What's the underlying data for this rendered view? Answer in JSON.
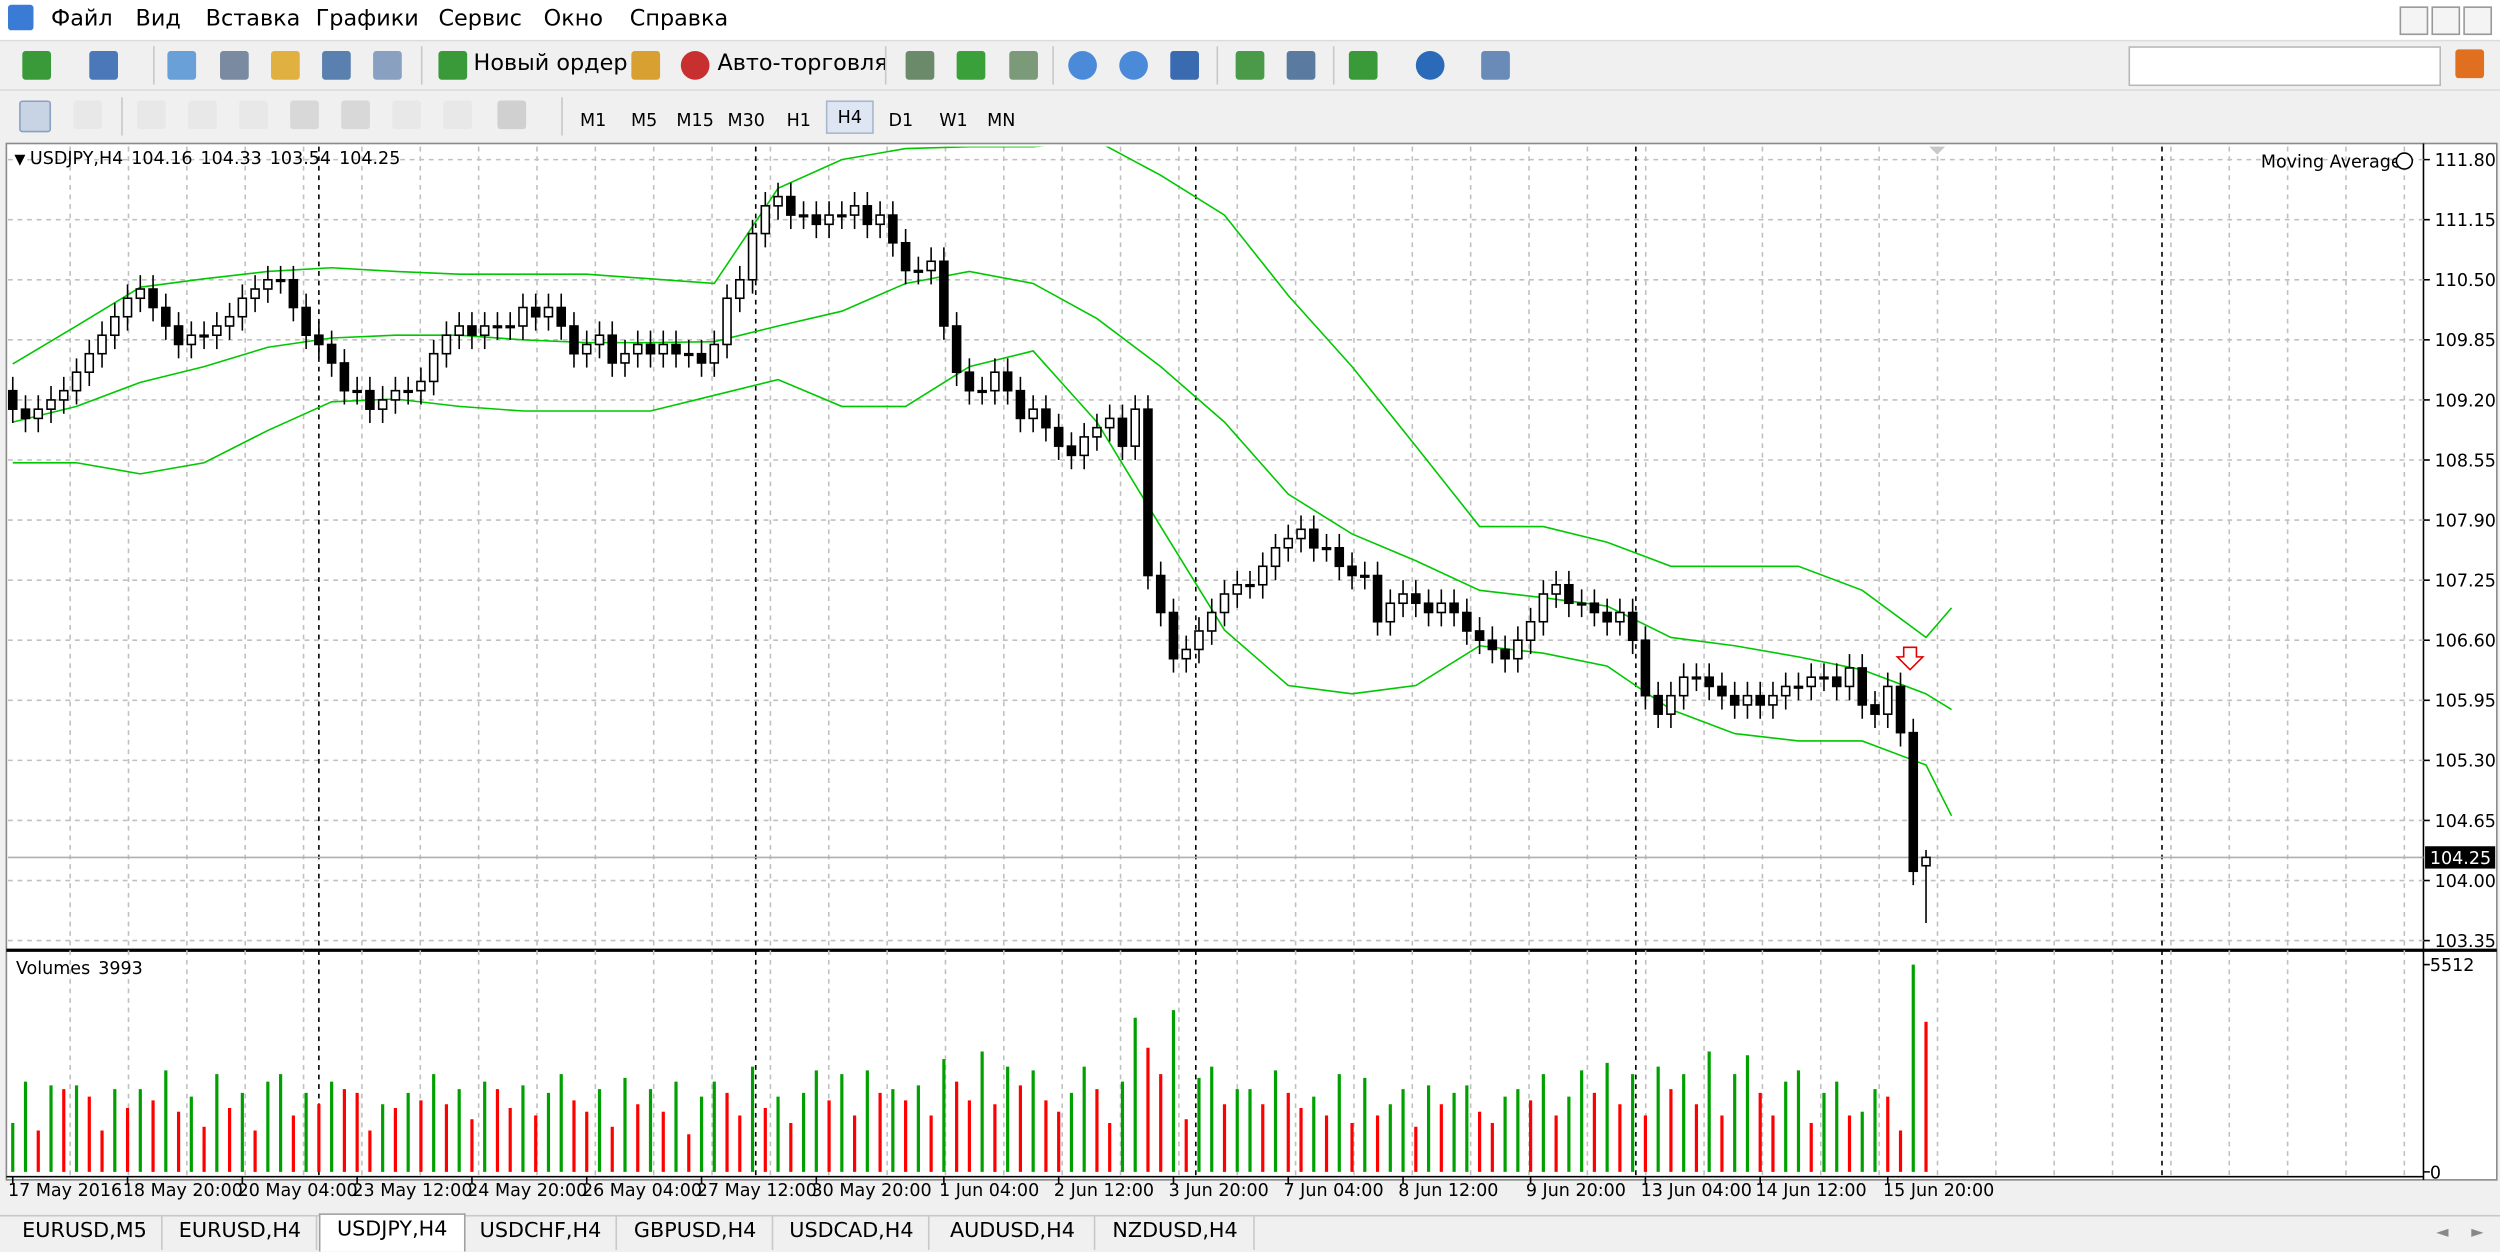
{
  "menu": [
    "Файл",
    "Вид",
    "Вставка",
    "Графики",
    "Сервис",
    "Окно",
    "Справка"
  ],
  "toolbar": {
    "new_order": "Новый ордер",
    "auto_trading": "Авто-торговля",
    "timeframes": [
      "M1",
      "M5",
      "M15",
      "M30",
      "H1",
      "H4",
      "D1",
      "W1",
      "MN"
    ]
  },
  "indicator_label": "Moving Average",
  "tabs": [
    "EURUSD,M5",
    "EURUSD,H4",
    "USDJPY,H4",
    "USDCHF,H4",
    "GBPUSD,H4",
    "USDCAD,H4",
    "AUDUSD,H4",
    "NZDUSD,H4"
  ],
  "chart_data": {
    "type": "candlestick",
    "symbol": "USDJPY,H4",
    "categories": [
      "17 May 2016",
      null,
      null,
      null,
      null,
      null,
      null,
      null,
      null,
      "18 May 20:00",
      null,
      null,
      null,
      null,
      null,
      null,
      null,
      null,
      "20 May 04:00",
      null,
      null,
      null,
      null,
      null,
      null,
      null,
      null,
      "23 May 12:00",
      null,
      null,
      null,
      null,
      null,
      null,
      null,
      null,
      "24 May 20:00",
      null,
      null,
      null,
      null,
      null,
      null,
      null,
      null,
      "26 May 04:00",
      null,
      null,
      null,
      null,
      null,
      null,
      null,
      null,
      "27 May 12:00",
      null,
      null,
      null,
      null,
      null,
      null,
      null,
      null,
      "30 May 20:00",
      null,
      null,
      null,
      null,
      null,
      null,
      null,
      null,
      null,
      "1 Jun 04:00",
      null,
      null,
      null,
      null,
      null,
      null,
      null,
      null,
      "2 Jun 12:00",
      null,
      null,
      null,
      null,
      null,
      null,
      null,
      null,
      "3 Jun 20:00",
      null,
      null,
      null,
      null,
      null,
      null,
      null,
      null,
      "7 Jun 04:00",
      null,
      null,
      null,
      null,
      null,
      null,
      null,
      null,
      "8 Jun 12:00",
      null,
      null,
      null,
      null,
      null,
      null,
      null,
      null,
      null,
      "9 Jun 20:00",
      null,
      null,
      null,
      null,
      null,
      null,
      null,
      null,
      "13 Jun 04:00",
      null,
      null,
      null,
      null,
      null,
      null,
      null,
      null,
      "14 Jun 12:00",
      null,
      null,
      null,
      null,
      null,
      null,
      null,
      null,
      null,
      "15 Jun 20:00",
      null,
      null,
      null
    ],
    "open": [
      109.3,
      109.1,
      109.0,
      109.1,
      109.2,
      109.3,
      109.5,
      109.7,
      109.9,
      110.1,
      110.3,
      110.4,
      110.2,
      110.0,
      109.8,
      109.9,
      109.9,
      110.0,
      110.1,
      110.3,
      110.4,
      110.5,
      110.5,
      110.2,
      109.9,
      109.8,
      109.6,
      109.3,
      109.3,
      109.1,
      109.2,
      109.3,
      109.3,
      109.4,
      109.7,
      109.9,
      110.0,
      109.9,
      110.0,
      110.0,
      110.0,
      110.2,
      110.1,
      110.2,
      110.0,
      109.7,
      109.8,
      109.9,
      109.6,
      109.7,
      109.8,
      109.7,
      109.8,
      109.7,
      109.7,
      109.6,
      109.8,
      110.3,
      110.5,
      111.0,
      111.3,
      111.4,
      111.2,
      111.2,
      111.1,
      111.2,
      111.2,
      111.3,
      111.1,
      111.2,
      110.9,
      110.6,
      110.6,
      110.7,
      110.0,
      109.5,
      109.3,
      109.3,
      109.5,
      109.3,
      109.0,
      109.1,
      108.9,
      108.7,
      108.6,
      108.8,
      108.9,
      109.0,
      108.7,
      109.1,
      107.3,
      106.9,
      106.4,
      106.5,
      106.7,
      106.9,
      107.1,
      107.2,
      107.2,
      107.4,
      107.6,
      107.7,
      107.8,
      107.6,
      107.6,
      107.4,
      107.3,
      107.3,
      106.8,
      107.0,
      107.1,
      107.0,
      106.9,
      107.0,
      106.9,
      106.7,
      106.6,
      106.5,
      106.4,
      106.6,
      106.8,
      107.1,
      107.2,
      107.0,
      107.0,
      106.9,
      106.8,
      106.9,
      106.6,
      106.0,
      105.8,
      106.0,
      106.2,
      106.2,
      106.1,
      106.0,
      105.9,
      106.0,
      105.9,
      106.0,
      106.1,
      106.1,
      106.2,
      106.2,
      106.1,
      106.3,
      105.9,
      105.8,
      106.1,
      105.6,
      104.16
    ],
    "high": [
      109.45,
      109.25,
      109.25,
      109.35,
      109.45,
      109.65,
      109.85,
      110.05,
      110.25,
      110.45,
      110.55,
      110.55,
      110.35,
      110.15,
      110.05,
      110.05,
      110.15,
      110.25,
      110.45,
      110.55,
      110.65,
      110.65,
      110.65,
      110.35,
      110.05,
      109.95,
      109.75,
      109.45,
      109.45,
      109.35,
      109.45,
      109.45,
      109.55,
      109.85,
      110.05,
      110.15,
      110.15,
      110.15,
      110.15,
      110.15,
      110.35,
      110.35,
      110.35,
      110.35,
      110.15,
      109.95,
      110.05,
      110.05,
      109.85,
      109.95,
      109.95,
      109.95,
      109.95,
      109.85,
      109.85,
      109.95,
      110.45,
      110.65,
      111.15,
      111.45,
      111.55,
      111.55,
      111.35,
      111.35,
      111.35,
      111.35,
      111.45,
      111.45,
      111.35,
      111.35,
      111.05,
      110.75,
      110.85,
      110.85,
      110.15,
      109.65,
      109.45,
      109.65,
      109.65,
      109.45,
      109.25,
      109.25,
      109.05,
      108.85,
      108.95,
      109.05,
      109.15,
      109.15,
      109.25,
      109.25,
      107.45,
      107.05,
      106.65,
      106.85,
      107.05,
      107.25,
      107.35,
      107.35,
      107.55,
      107.75,
      107.85,
      107.95,
      107.95,
      107.75,
      107.75,
      107.55,
      107.45,
      107.45,
      107.15,
      107.25,
      107.25,
      107.15,
      107.15,
      107.15,
      107.05,
      106.85,
      106.75,
      106.65,
      106.75,
      106.95,
      107.25,
      107.35,
      107.35,
      107.15,
      107.15,
      107.05,
      107.05,
      107.05,
      106.75,
      106.15,
      106.15,
      106.35,
      106.35,
      106.35,
      106.25,
      106.15,
      106.15,
      106.15,
      106.15,
      106.25,
      106.25,
      106.35,
      106.35,
      106.35,
      106.45,
      106.45,
      106.05,
      106.25,
      106.25,
      105.75,
      104.33
    ],
    "low": [
      108.95,
      108.85,
      108.85,
      108.95,
      109.05,
      109.15,
      109.35,
      109.55,
      109.75,
      109.95,
      110.15,
      110.05,
      109.85,
      109.65,
      109.65,
      109.75,
      109.75,
      109.85,
      109.95,
      110.15,
      110.25,
      110.35,
      110.05,
      109.75,
      109.65,
      109.45,
      109.15,
      109.15,
      108.95,
      108.95,
      109.05,
      109.15,
      109.15,
      109.25,
      109.55,
      109.75,
      109.75,
      109.75,
      109.85,
      109.85,
      109.85,
      109.95,
      109.95,
      109.85,
      109.55,
      109.55,
      109.65,
      109.45,
      109.45,
      109.55,
      109.55,
      109.55,
      109.55,
      109.55,
      109.45,
      109.45,
      109.65,
      110.15,
      110.35,
      110.85,
      111.15,
      111.05,
      111.05,
      110.95,
      110.95,
      111.05,
      111.05,
      110.95,
      110.95,
      110.75,
      110.45,
      110.45,
      110.45,
      109.85,
      109.35,
      109.15,
      109.15,
      109.15,
      109.15,
      108.85,
      108.85,
      108.75,
      108.55,
      108.45,
      108.45,
      108.65,
      108.75,
      108.55,
      108.55,
      107.15,
      106.75,
      106.25,
      106.25,
      106.35,
      106.55,
      106.75,
      106.95,
      107.05,
      107.05,
      107.25,
      107.45,
      107.55,
      107.45,
      107.45,
      107.25,
      107.15,
      107.15,
      106.65,
      106.65,
      106.85,
      106.85,
      106.75,
      106.75,
      106.75,
      106.55,
      106.45,
      106.35,
      106.25,
      106.25,
      106.45,
      106.65,
      106.95,
      106.85,
      106.85,
      106.75,
      106.65,
      106.65,
      106.45,
      105.85,
      105.65,
      105.65,
      105.85,
      106.05,
      105.95,
      105.85,
      105.75,
      105.75,
      105.75,
      105.75,
      105.85,
      105.95,
      105.95,
      106.05,
      105.95,
      105.95,
      105.75,
      105.65,
      105.65,
      105.45,
      103.95,
      103.54
    ],
    "close": [
      109.1,
      109.0,
      109.1,
      109.2,
      109.3,
      109.5,
      109.7,
      109.9,
      110.1,
      110.3,
      110.4,
      110.2,
      110.0,
      109.8,
      109.9,
      109.9,
      110.0,
      110.1,
      110.3,
      110.4,
      110.5,
      110.5,
      110.2,
      109.9,
      109.8,
      109.6,
      109.3,
      109.3,
      109.1,
      109.2,
      109.3,
      109.3,
      109.4,
      109.7,
      109.9,
      110.0,
      109.9,
      110.0,
      110.0,
      110.0,
      110.2,
      110.1,
      110.2,
      110.0,
      109.7,
      109.8,
      109.9,
      109.6,
      109.7,
      109.8,
      109.7,
      109.8,
      109.7,
      109.7,
      109.6,
      109.8,
      110.3,
      110.5,
      111.0,
      111.3,
      111.4,
      111.2,
      111.2,
      111.1,
      111.2,
      111.2,
      111.3,
      111.1,
      111.2,
      110.9,
      110.6,
      110.6,
      110.7,
      110.0,
      109.5,
      109.3,
      109.3,
      109.5,
      109.3,
      109.0,
      109.1,
      108.9,
      108.7,
      108.6,
      108.8,
      108.9,
      109.0,
      108.7,
      109.1,
      107.3,
      106.9,
      106.4,
      106.5,
      106.7,
      106.9,
      107.1,
      107.2,
      107.2,
      107.4,
      107.6,
      107.7,
      107.8,
      107.6,
      107.6,
      107.4,
      107.3,
      107.3,
      106.8,
      107.0,
      107.1,
      107.0,
      106.9,
      107.0,
      106.9,
      106.7,
      106.6,
      106.5,
      106.4,
      106.6,
      106.8,
      107.1,
      107.2,
      107.0,
      107.0,
      106.9,
      106.8,
      106.9,
      106.6,
      106.0,
      105.8,
      106.0,
      106.2,
      106.2,
      106.1,
      106.0,
      105.9,
      106.0,
      105.9,
      106.0,
      106.1,
      106.1,
      106.2,
      106.2,
      106.1,
      106.3,
      105.9,
      105.8,
      106.1,
      105.6,
      104.1,
      104.25
    ],
    "up_color": "#ffffff",
    "down_color": "#000000",
    "line_color": "#000000",
    "ylim": [
      103.28,
      111.94
    ],
    "yticks": [
      {
        "value": 111.8,
        "label": "111.80"
      },
      111.15,
      {
        "value": 110.5,
        "label": "110.50"
      },
      109.85,
      {
        "value": 109.2,
        "label": "109.20"
      },
      108.55,
      {
        "value": 107.9,
        "label": "107.90"
      },
      107.25,
      {
        "value": 106.6,
        "label": "106.60"
      },
      105.95,
      {
        "value": 105.3,
        "label": "105.30"
      },
      104.65,
      {
        "value": 104,
        "label": "104.00"
      },
      {
        "value": 103.35,
        "label": "103.35"
      }
    ],
    "grid": true,
    "bands": {
      "color": "#00c800",
      "x": [
        0,
        5,
        10,
        15,
        20,
        25,
        30,
        35,
        40,
        45,
        50,
        55,
        60,
        65,
        70,
        75,
        80,
        85,
        90,
        95,
        100,
        105,
        110,
        115,
        120,
        125,
        130,
        135,
        140,
        145,
        150,
        152
      ],
      "upper": [
        109.59,
        110.0,
        110.42,
        110.51,
        110.59,
        110.63,
        110.59,
        110.56,
        110.56,
        110.56,
        110.51,
        110.46,
        111.49,
        111.8,
        111.92,
        111.94,
        111.94,
        112.0,
        111.63,
        111.2,
        110.33,
        109.56,
        108.7,
        107.83,
        107.83,
        107.66,
        107.4,
        107.4,
        107.4,
        107.14,
        106.63,
        106.95
      ],
      "middle": [
        108.96,
        109.13,
        109.39,
        109.56,
        109.77,
        109.87,
        109.9,
        109.9,
        109.85,
        109.82,
        109.82,
        109.83,
        110.0,
        110.16,
        110.46,
        110.59,
        110.46,
        110.08,
        109.56,
        108.96,
        108.18,
        107.75,
        107.46,
        107.14,
        107.06,
        106.97,
        106.63,
        106.54,
        106.42,
        106.28,
        106.02,
        105.85
      ],
      "lower": [
        108.52,
        108.52,
        108.4,
        108.52,
        108.87,
        109.18,
        109.21,
        109.13,
        109.08,
        109.08,
        109.08,
        109.25,
        109.42,
        109.13,
        109.13,
        109.56,
        109.73,
        108.96,
        107.83,
        106.71,
        106.11,
        106.02,
        106.11,
        106.54,
        106.46,
        106.32,
        105.85,
        105.59,
        105.51,
        105.51,
        105.25,
        104.7
      ]
    },
    "volume": {
      "label": "Volumes",
      "up_color": "#00a000",
      "down_color": "#ff0000",
      "ylim": [
        0,
        5512
      ],
      "yticks": [
        5512,
        0
      ],
      "values": [
        1300,
        2400,
        1100,
        2300,
        2200,
        2300,
        2000,
        1100,
        2200,
        1700,
        2200,
        1900,
        2700,
        1600,
        2000,
        1200,
        2600,
        1700,
        2100,
        1100,
        2400,
        2600,
        1500,
        2100,
        1800,
        2400,
        2200,
        2100,
        1100,
        1800,
        1700,
        2100,
        1900,
        2600,
        1800,
        2200,
        1400,
        2400,
        2200,
        1700,
        2300,
        1500,
        2100,
        2600,
        1900,
        1600,
        2200,
        1200,
        2500,
        1800,
        2200,
        1600,
        2400,
        1000,
        2000,
        2400,
        2100,
        1500,
        2800,
        1700,
        2000,
        1300,
        2100,
        2700,
        1900,
        2600,
        1500,
        2700,
        2100,
        2200,
        1900,
        2300,
        1500,
        3000,
        2400,
        1900,
        3200,
        1800,
        2800,
        2300,
        2700,
        1900,
        1600,
        2100,
        2800,
        2200,
        1300,
        2400,
        4100,
        3300,
        2600,
        4300,
        1400,
        2500,
        2800,
        1800,
        2200,
        2200,
        1800,
        2700,
        2100,
        1700,
        2000,
        1500,
        2600,
        1300,
        2500,
        1500,
        1800,
        2200,
        1200,
        2300,
        1800,
        2100,
        2300,
        1600,
        1300,
        2000,
        2200,
        1900,
        2600,
        1500,
        2000,
        2700,
        2100,
        2900,
        1800,
        2600,
        1500,
        2800,
        2200,
        2600,
        1800,
        3200,
        1500,
        2600,
        3100,
        2100,
        1500,
        2400,
        2700,
        1300,
        2100,
        2400,
        1500,
        1600,
        2200,
        2000,
        1100,
        5512,
        3993
      ]
    }
  }
}
